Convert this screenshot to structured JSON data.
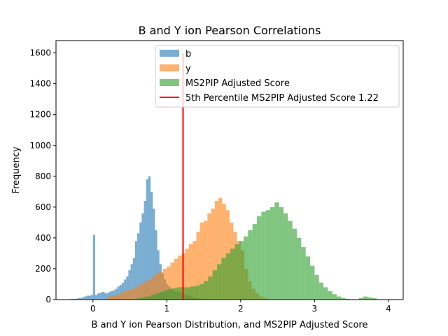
{
  "chart_data": {
    "type": "histogram",
    "title": "B and Y ion Pearson Correlations",
    "xlabel": "B and Y ion Pearson Distribution, and MS2PIP Adjusted Score",
    "ylabel": "Frequency",
    "xlim": [
      -0.5,
      4.2
    ],
    "ylim": [
      0,
      1680
    ],
    "xticks": [
      0,
      1,
      2,
      3,
      4
    ],
    "xtick_labels": [
      "0",
      "1",
      "2",
      "3",
      "4"
    ],
    "yticks": [
      0,
      200,
      400,
      600,
      800,
      1000,
      1200,
      1400,
      1600
    ],
    "ytick_labels": [
      "0",
      "200",
      "400",
      "600",
      "800",
      "1000",
      "1200",
      "1400",
      "1600"
    ],
    "grid": false,
    "legend_position": "top-center",
    "series": [
      {
        "name": "b",
        "color": "#1f77b4",
        "opacity": 0.6,
        "bin_start": -0.3,
        "bin_width": 0.03,
        "counts": [
          5,
          5,
          5,
          10,
          10,
          15,
          20,
          25,
          25,
          30,
          420,
          30,
          40,
          45,
          50,
          45,
          40,
          50,
          55,
          60,
          70,
          85,
          95,
          110,
          130,
          150,
          190,
          230,
          270,
          380,
          430,
          500,
          560,
          640,
          780,
          800,
          700,
          590,
          450,
          320,
          230,
          170,
          130,
          100,
          85,
          70,
          60,
          55,
          50,
          45,
          40,
          35,
          30,
          25,
          20,
          15,
          12,
          10,
          8,
          6,
          4,
          3,
          2,
          1,
          1
        ]
      },
      {
        "name": "y",
        "color": "#ff7f0e",
        "opacity": 0.6,
        "bin_start": 0.2,
        "bin_width": 0.05,
        "counts": [
          20,
          25,
          30,
          40,
          50,
          60,
          65,
          75,
          90,
          100,
          120,
          130,
          150,
          170,
          180,
          200,
          215,
          240,
          265,
          285,
          300,
          330,
          360,
          380,
          440,
          500,
          510,
          560,
          590,
          640,
          660,
          620,
          580,
          500,
          440,
          380,
          320,
          200,
          120,
          70,
          40,
          20,
          10,
          5
        ]
      },
      {
        "name": "MS2PIP Adjusted Score",
        "color": "#2ca02c",
        "opacity": 0.6,
        "bin_start": 0.6,
        "bin_width": 0.06,
        "counts": [
          10,
          15,
          20,
          30,
          40,
          50,
          60,
          70,
          75,
          80,
          80,
          80,
          85,
          90,
          100,
          120,
          150,
          190,
          230,
          270,
          300,
          330,
          360,
          380,
          410,
          450,
          490,
          540,
          570,
          580,
          600,
          630,
          600,
          560,
          510,
          460,
          400,
          340,
          280,
          220,
          160,
          110,
          80,
          55,
          35,
          20,
          10,
          5,
          3,
          2,
          10,
          20,
          15,
          10
        ]
      }
    ],
    "vline": {
      "x": 1.22,
      "color": "#ff0000",
      "label": "5th Percentile  MS2PIP Adjusted Score 1.22"
    }
  }
}
